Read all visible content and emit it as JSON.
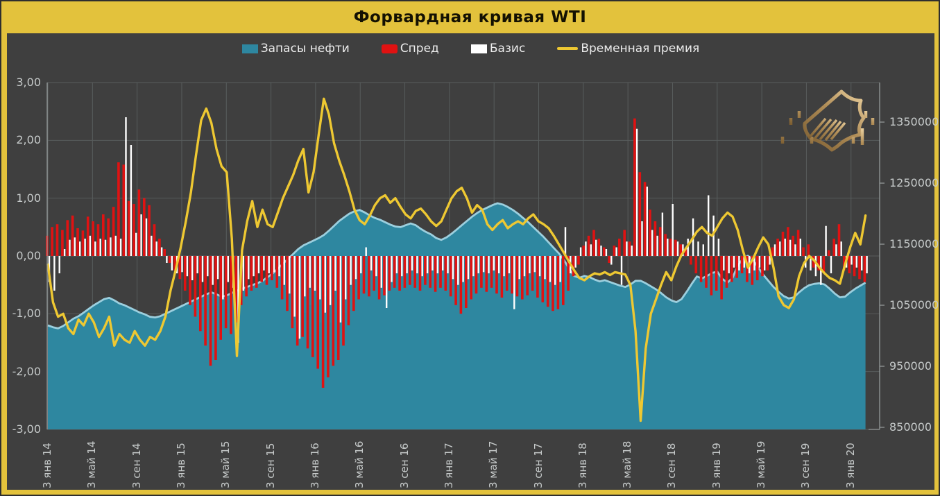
{
  "frame": {
    "title": "Форвардная кривая WTI",
    "colors": {
      "frame_gold": "#e3c23c",
      "panel_bg": "#3f3f3f",
      "grid": "#585d5d",
      "axis_line": "#9aa0a0",
      "axis_text": "#c6caca",
      "title_text": "#141102",
      "inventories_fill": "#2e87a0",
      "inventories_edge": "#9ccfde",
      "spread_red": "#e01212",
      "basis_white": "#ffffff",
      "premium_gold": "#eec832",
      "logo_gold_dark": "#7a5c30",
      "logo_gold_light": "#ecd2a0"
    }
  },
  "legend": [
    {
      "label": "Запасы нефти",
      "color": "#2e87a0",
      "type": "area"
    },
    {
      "label": "Спред",
      "color": "#e01212",
      "type": "bar"
    },
    {
      "label": "Базис",
      "color": "#ffffff",
      "type": "bar"
    },
    {
      "label": "Временная премия",
      "color": "#eec832",
      "type": "line"
    }
  ],
  "chart_data": {
    "type": "combo",
    "title": "Форвардная кривая WTI",
    "grid": true,
    "legend_position": "top",
    "x": {
      "start_date": "2014-01-03",
      "sample_step_days": 14,
      "tick_labels": [
        "3 янв 14",
        "3 май 14",
        "3 сен 14",
        "3 янв 15",
        "3 май 15",
        "3 сен 15",
        "3 янв 16",
        "3 май 16",
        "3 сен 16",
        "3 янв 17",
        "3 май 17",
        "3 сен 17",
        "3 янв 18",
        "3 май 18",
        "3 сен 18",
        "3 янв 19",
        "3 май 19",
        "3 сен 19",
        "3 янв 20"
      ]
    },
    "left_axis": {
      "min": -3,
      "max": 3,
      "tick_values": [
        3,
        2,
        1,
        0,
        -1,
        -2,
        -3
      ],
      "tick_labels": [
        "3,00",
        "2,00",
        "1,00",
        "0,00",
        "-1,00",
        "-2,00",
        "-3,00"
      ]
    },
    "right_axis": {
      "min": 850000,
      "max": 1420000,
      "tick_values": [
        1350000,
        1250000,
        1150000,
        1050000,
        950000,
        850000
      ],
      "tick_labels": [
        "1350000",
        "1250000",
        "1150000",
        "1050000",
        "950000",
        "850000"
      ]
    },
    "series": [
      {
        "name": "Запасы нефти",
        "type": "area",
        "axis": "right",
        "color": "#2e87a0",
        "edge_color": "#9ccfde",
        "values": [
          1017000,
          1014000,
          1012000,
          1016000,
          1022000,
          1028000,
          1032000,
          1038000,
          1044000,
          1050000,
          1055000,
          1060000,
          1062000,
          1058000,
          1053000,
          1050000,
          1046000,
          1042000,
          1038000,
          1035000,
          1031000,
          1030000,
          1032000,
          1036000,
          1040000,
          1044000,
          1048000,
          1052000,
          1056000,
          1060000,
          1064000,
          1068000,
          1071000,
          1068000,
          1064000,
          1066000,
          1070000,
          1074000,
          1077000,
          1080000,
          1083000,
          1086000,
          1090000,
          1096000,
          1102000,
          1110000,
          1118000,
          1126000,
          1134000,
          1142000,
          1148000,
          1152000,
          1156000,
          1160000,
          1165000,
          1172000,
          1180000,
          1188000,
          1194000,
          1200000,
          1204000,
          1206000,
          1202000,
          1197000,
          1193000,
          1190000,
          1186000,
          1182000,
          1179000,
          1178000,
          1181000,
          1184000,
          1181000,
          1175000,
          1170000,
          1166000,
          1160000,
          1157000,
          1161000,
          1167000,
          1174000,
          1181000,
          1188000,
          1195000,
          1201000,
          1206000,
          1210000,
          1214000,
          1217000,
          1215000,
          1211000,
          1206000,
          1200000,
          1193000,
          1186000,
          1178000,
          1170000,
          1162000,
          1153000,
          1144000,
          1135000,
          1124000,
          1110000,
          1098000,
          1095000,
          1098000,
          1096000,
          1092000,
          1089000,
          1091000,
          1088000,
          1085000,
          1082000,
          1080000,
          1084000,
          1090000,
          1090000,
          1086000,
          1081000,
          1076000,
          1070000,
          1063000,
          1058000,
          1055000,
          1060000,
          1072000,
          1085000,
          1097000,
          1094000,
          1098000,
          1103000,
          1105000,
          1093000,
          1087000,
          1095000,
          1115000,
          1126000,
          1131000,
          1124000,
          1112000,
          1100000,
          1090000,
          1080000,
          1072000,
          1065000,
          1061000,
          1063000,
          1071000,
          1078000,
          1083000,
          1085000,
          1086000,
          1084000,
          1077000,
          1069000,
          1063000,
          1064000,
          1071000,
          1077000,
          1082000,
          1087000
        ]
      },
      {
        "name": "Спред",
        "type": "bar",
        "axis": "left",
        "color": "#e01212",
        "values": [
          0.35,
          0.5,
          0.55,
          0.45,
          0.62,
          0.7,
          0.48,
          0.44,
          0.68,
          0.6,
          0.55,
          0.72,
          0.65,
          0.85,
          1.62,
          1.58,
          0.95,
          0.9,
          1.15,
          1.0,
          0.88,
          0.55,
          0.3,
          0.12,
          -0.12,
          -0.25,
          -0.4,
          -0.6,
          -0.85,
          -1.05,
          -1.3,
          -1.55,
          -1.9,
          -1.8,
          -1.45,
          -1.25,
          -1.35,
          -1.15,
          -0.85,
          -0.7,
          -0.6,
          -0.55,
          -0.45,
          -0.5,
          -0.42,
          -0.55,
          -0.75,
          -0.95,
          -1.25,
          -1.55,
          -1.4,
          -1.6,
          -1.75,
          -1.95,
          -2.28,
          -2.1,
          -1.9,
          -1.8,
          -1.55,
          -1.2,
          -0.95,
          -0.75,
          -0.65,
          -0.7,
          -0.6,
          -0.75,
          -0.68,
          -0.6,
          -0.55,
          -0.6,
          -0.55,
          -0.5,
          -0.55,
          -0.6,
          -0.5,
          -0.55,
          -0.62,
          -0.55,
          -0.6,
          -0.7,
          -0.85,
          -1.0,
          -0.9,
          -0.75,
          -0.65,
          -0.55,
          -0.62,
          -0.55,
          -0.65,
          -0.72,
          -0.6,
          -0.65,
          -0.7,
          -0.75,
          -0.68,
          -0.6,
          -0.72,
          -0.8,
          -0.88,
          -0.95,
          -0.92,
          -0.85,
          -0.6,
          -0.35,
          -0.15,
          0.18,
          0.35,
          0.45,
          0.3,
          0.15,
          -0.12,
          0.18,
          0.3,
          0.45,
          0.25,
          2.38,
          1.45,
          1.28,
          0.8,
          0.6,
          0.5,
          0.38,
          0.3,
          0.28,
          0.2,
          0.15,
          -0.15,
          -0.3,
          -0.45,
          -0.55,
          -0.68,
          -0.6,
          -0.75,
          -0.55,
          -0.45,
          -0.38,
          -0.3,
          -0.45,
          -0.5,
          -0.42,
          -0.35,
          -0.25,
          0.15,
          0.3,
          0.42,
          0.5,
          0.35,
          0.45,
          0.15,
          0.2,
          -0.2,
          -0.25,
          -0.3,
          0.1,
          0.3,
          0.55,
          -0.25,
          -0.3,
          -0.35,
          -0.4,
          -0.45
        ]
      },
      {
        "name": "Базис",
        "type": "bar",
        "axis": "left",
        "color": "#ffffff",
        "values": [
          -0.45,
          -0.6,
          -0.3,
          0.12,
          0.28,
          0.32,
          0.25,
          0.3,
          0.35,
          0.25,
          0.3,
          0.28,
          0.32,
          0.35,
          0.3,
          2.4,
          1.92,
          0.4,
          0.72,
          0.65,
          0.35,
          0.25,
          0.15,
          -0.12,
          -0.25,
          -0.3,
          -0.28,
          -0.35,
          -0.42,
          -0.3,
          -0.45,
          -0.35,
          -0.5,
          -0.4,
          -0.75,
          -0.45,
          -0.55,
          -1.5,
          -0.6,
          -0.4,
          -0.35,
          -0.3,
          -0.25,
          -0.3,
          -0.28,
          -0.35,
          -0.5,
          -0.65,
          -1.05,
          -1.43,
          -0.7,
          -0.55,
          -0.6,
          -0.75,
          -0.98,
          -0.85,
          -0.6,
          -1.15,
          -0.75,
          -0.5,
          -0.4,
          -0.3,
          0.15,
          -0.25,
          -0.35,
          -0.55,
          -0.9,
          -0.45,
          -0.3,
          -0.35,
          -0.3,
          -0.25,
          -0.3,
          -0.35,
          -0.3,
          -0.25,
          -0.3,
          -0.25,
          -0.3,
          -0.4,
          -0.5,
          -0.45,
          -0.4,
          -0.35,
          -0.3,
          -0.28,
          -0.3,
          -0.25,
          -0.3,
          -0.35,
          -0.3,
          -0.92,
          -0.4,
          -0.35,
          -0.3,
          -0.28,
          -0.35,
          -0.4,
          -0.45,
          -0.5,
          -0.45,
          0.5,
          -0.3,
          -0.2,
          0.15,
          0.25,
          0.2,
          0.28,
          0.18,
          0.12,
          -0.15,
          0.15,
          -0.5,
          0.25,
          0.18,
          2.2,
          0.6,
          1.2,
          0.45,
          0.35,
          0.75,
          0.3,
          0.9,
          0.25,
          0.2,
          0.3,
          0.65,
          0.25,
          0.2,
          1.05,
          0.7,
          0.3,
          -0.25,
          -0.3,
          -0.2,
          -0.25,
          -0.2,
          -0.3,
          -0.25,
          -0.2,
          -0.25,
          -0.15,
          0.2,
          0.25,
          0.3,
          0.28,
          0.2,
          0.3,
          -0.2,
          -0.25,
          -0.35,
          -0.5,
          0.52,
          -0.3,
          0.2,
          0.25,
          -0.2,
          -0.15,
          -0.2,
          -0.25,
          -0.3
        ]
      },
      {
        "name": "Временная премия",
        "type": "line",
        "axis": "left",
        "color": "#eec832",
        "values": [
          -0.15,
          -0.8,
          -1.05,
          -1.0,
          -1.25,
          -1.35,
          -1.1,
          -1.2,
          -1.0,
          -1.15,
          -1.4,
          -1.25,
          -1.05,
          -1.55,
          -1.35,
          -1.45,
          -1.5,
          -1.3,
          -1.45,
          -1.55,
          -1.4,
          -1.45,
          -1.3,
          -1.05,
          -0.6,
          -0.25,
          0.15,
          0.6,
          1.1,
          1.75,
          2.35,
          2.55,
          2.3,
          1.85,
          1.55,
          1.45,
          0.3,
          -1.73,
          0.1,
          0.6,
          0.95,
          0.5,
          0.8,
          0.55,
          0.5,
          0.75,
          1.0,
          1.2,
          1.4,
          1.65,
          1.85,
          1.1,
          1.45,
          2.1,
          2.72,
          2.45,
          1.95,
          1.65,
          1.4,
          1.12,
          0.8,
          0.62,
          0.55,
          0.7,
          0.88,
          1.0,
          1.05,
          0.92,
          1.0,
          0.85,
          0.72,
          0.65,
          0.78,
          0.82,
          0.72,
          0.6,
          0.52,
          0.6,
          0.8,
          1.0,
          1.12,
          1.18,
          1.0,
          0.75,
          0.88,
          0.8,
          0.55,
          0.45,
          0.55,
          0.62,
          0.48,
          0.55,
          0.6,
          0.55,
          0.65,
          0.72,
          0.6,
          0.55,
          0.48,
          0.35,
          0.2,
          0.05,
          -0.1,
          -0.25,
          -0.38,
          -0.42,
          -0.35,
          -0.3,
          -0.32,
          -0.28,
          -0.33,
          -0.28,
          -0.3,
          -0.32,
          -0.5,
          -1.3,
          -2.85,
          -1.6,
          -1.0,
          -0.75,
          -0.5,
          -0.28,
          -0.42,
          -0.18,
          0.02,
          0.15,
          0.28,
          0.42,
          0.5,
          0.4,
          0.35,
          0.5,
          0.65,
          0.75,
          0.68,
          0.45,
          0.1,
          -0.2,
          -0.05,
          0.15,
          0.32,
          0.2,
          -0.2,
          -0.7,
          -0.85,
          -0.9,
          -0.75,
          -0.35,
          -0.12,
          0.0,
          -0.08,
          -0.2,
          -0.3,
          -0.38,
          -0.42,
          -0.48,
          -0.15,
          0.15,
          0.4,
          0.2,
          0.7
        ]
      }
    ]
  }
}
